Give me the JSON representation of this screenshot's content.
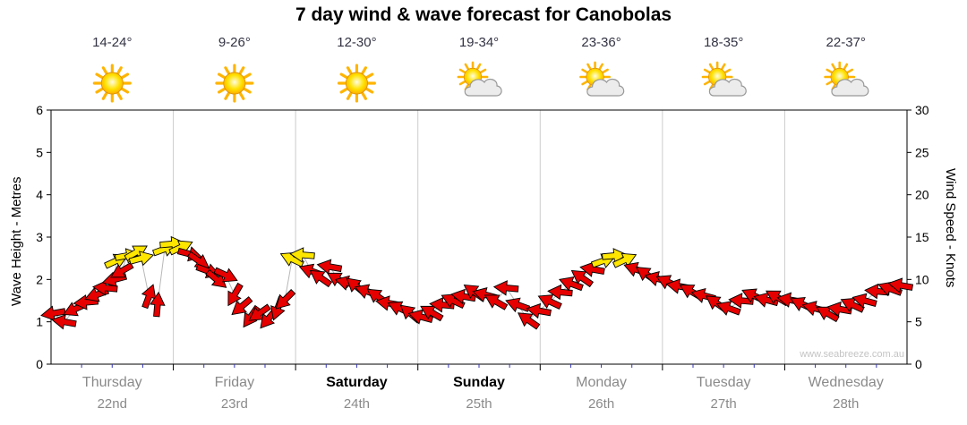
{
  "watermark": "www.seabreeze.com.au",
  "colors": {
    "arrow_red": "#e60000",
    "arrow_yellow": "#ffe600",
    "arrow_outline": "#000000",
    "gridline": "#cccccc",
    "axis": "#000000",
    "minor_tick": "#3333bb",
    "day_grey": "#8a8a8a",
    "day_black": "#000000",
    "temp_text": "#333344",
    "watermark_text": "#c4c4c4",
    "sun_core": "#ffe200",
    "sun_ray": "#ffb400",
    "cloud_fill": "#ececec",
    "cloud_outline": "#999999",
    "trace_line": "#b0b0b0"
  },
  "chart_data": {
    "type": "scatter",
    "title": "7 day wind & wave forecast for Canobolas",
    "left_axis": {
      "label": "Wave Height - Metres",
      "min": 0,
      "max": 6,
      "ticks": [
        0,
        1,
        2,
        3,
        4,
        5,
        6
      ]
    },
    "right_axis": {
      "label": "Wind Speed - Knots",
      "min": 0,
      "max": 30,
      "ticks": [
        0,
        5,
        10,
        15,
        20,
        25,
        30
      ]
    },
    "x_axis": {
      "span_hours": 168,
      "gridlines": "day-boundaries"
    },
    "days": [
      {
        "name": "Thursday",
        "date": "22nd",
        "temp": "14-24°",
        "icon": "sunny",
        "bold": false
      },
      {
        "name": "Friday",
        "date": "23rd",
        "temp": "9-26°",
        "icon": "sunny",
        "bold": false
      },
      {
        "name": "Saturday",
        "date": "24th",
        "temp": "12-30°",
        "icon": "sunny",
        "bold": true
      },
      {
        "name": "Sunday",
        "date": "25th",
        "temp": "19-34°",
        "icon": "partly-cloudy",
        "bold": true
      },
      {
        "name": "Monday",
        "date": "26th",
        "temp": "23-36°",
        "icon": "partly-cloudy",
        "bold": false
      },
      {
        "name": "Tuesday",
        "date": "27th",
        "temp": "18-35°",
        "icon": "partly-cloudy",
        "bold": false
      },
      {
        "name": "Wednesday",
        "date": "28th",
        "temp": "22-37°",
        "icon": "partly-cloudy",
        "bold": false
      }
    ],
    "wind_points_format": [
      "hour_offset",
      "wind_speed_knots",
      "arrow_dir_deg_cw_from_east",
      "color_code_r_red_y_yellow"
    ],
    "wind_points": [
      [
        0.5,
        6.0,
        170,
        "r"
      ],
      [
        2.6,
        5.0,
        190,
        "r"
      ],
      [
        4.7,
        6.5,
        155,
        "r"
      ],
      [
        6.9,
        7.3,
        175,
        "r"
      ],
      [
        9.0,
        8.2,
        160,
        "r"
      ],
      [
        10.7,
        9.0,
        185,
        "r"
      ],
      [
        12.5,
        10.0,
        165,
        "r"
      ],
      [
        12.8,
        12.2,
        -25,
        "y"
      ],
      [
        13.9,
        11.0,
        150,
        "r"
      ],
      [
        14.9,
        12.8,
        -10,
        "y"
      ],
      [
        16.7,
        13.2,
        -30,
        "y"
      ],
      [
        17.7,
        12.5,
        -15,
        "y"
      ],
      [
        19.2,
        8.0,
        -70,
        "r"
      ],
      [
        20.9,
        7.0,
        -85,
        "r"
      ],
      [
        22.3,
        13.6,
        -20,
        "y"
      ],
      [
        23.7,
        14.2,
        -5,
        "y"
      ],
      [
        25.5,
        13.8,
        -25,
        "y"
      ],
      [
        27.2,
        13.0,
        15,
        "r"
      ],
      [
        29.0,
        12.2,
        35,
        "r"
      ],
      [
        30.8,
        11.0,
        20,
        "r"
      ],
      [
        32.5,
        10.0,
        40,
        "r"
      ],
      [
        34.3,
        10.5,
        25,
        "r"
      ],
      [
        36.0,
        8.2,
        120,
        "r"
      ],
      [
        37.4,
        6.8,
        140,
        "r"
      ],
      [
        39.2,
        5.6,
        125,
        "r"
      ],
      [
        40.9,
        6.0,
        145,
        "r"
      ],
      [
        42.7,
        5.4,
        130,
        "r"
      ],
      [
        44.5,
        6.6,
        110,
        "r"
      ],
      [
        45.9,
        7.6,
        135,
        "r"
      ],
      [
        47.3,
        12.4,
        -155,
        "y"
      ],
      [
        49.4,
        12.9,
        -175,
        "y"
      ],
      [
        51.1,
        11.0,
        200,
        "r"
      ],
      [
        52.9,
        10.2,
        215,
        "r"
      ],
      [
        54.7,
        11.5,
        190,
        "r"
      ],
      [
        56.4,
        10.0,
        210,
        "r"
      ],
      [
        58.2,
        9.6,
        195,
        "r"
      ],
      [
        59.9,
        9.2,
        220,
        "r"
      ],
      [
        62.0,
        8.6,
        200,
        "r"
      ],
      [
        64.1,
        8.0,
        215,
        "r"
      ],
      [
        66.2,
        7.2,
        190,
        "r"
      ],
      [
        68.4,
        6.6,
        205,
        "r"
      ],
      [
        70.5,
        6.0,
        220,
        "r"
      ],
      [
        72.6,
        5.6,
        195,
        "r"
      ],
      [
        74.7,
        6.1,
        210,
        "r"
      ],
      [
        76.8,
        7.0,
        185,
        "r"
      ],
      [
        78.9,
        7.5,
        205,
        "r"
      ],
      [
        81.0,
        8.0,
        190,
        "r"
      ],
      [
        83.1,
        8.5,
        215,
        "r"
      ],
      [
        85.2,
        8.2,
        195,
        "r"
      ],
      [
        87.3,
        7.4,
        210,
        "r"
      ],
      [
        89.4,
        9.0,
        185,
        "r"
      ],
      [
        91.6,
        7.0,
        200,
        "r"
      ],
      [
        93.7,
        5.2,
        215,
        "r"
      ],
      [
        95.8,
        6.3,
        190,
        "r"
      ],
      [
        97.9,
        7.4,
        205,
        "r"
      ],
      [
        100.0,
        8.5,
        185,
        "r"
      ],
      [
        102.1,
        9.5,
        200,
        "r"
      ],
      [
        104.2,
        10.2,
        215,
        "r"
      ],
      [
        106.3,
        11.2,
        190,
        "r"
      ],
      [
        108.4,
        12.2,
        -20,
        "y"
      ],
      [
        110.5,
        12.8,
        -5,
        "y"
      ],
      [
        112.6,
        12.3,
        -25,
        "y"
      ],
      [
        114.8,
        11.2,
        200,
        "r"
      ],
      [
        116.9,
        10.6,
        215,
        "r"
      ],
      [
        119.0,
        10.1,
        195,
        "r"
      ],
      [
        121.1,
        9.7,
        205,
        "r"
      ],
      [
        123.2,
        9.2,
        190,
        "r"
      ],
      [
        125.6,
        8.6,
        210,
        "r"
      ],
      [
        128.1,
        8.1,
        195,
        "r"
      ],
      [
        130.6,
        7.2,
        215,
        "r"
      ],
      [
        133.0,
        6.6,
        200,
        "r"
      ],
      [
        135.5,
        7.5,
        185,
        "r"
      ],
      [
        137.9,
        8.1,
        205,
        "r"
      ],
      [
        140.4,
        7.6,
        195,
        "r"
      ],
      [
        142.5,
        7.9,
        210,
        "r"
      ],
      [
        145.0,
        7.6,
        190,
        "r"
      ],
      [
        147.4,
        7.1,
        205,
        "r"
      ],
      [
        149.9,
        6.6,
        195,
        "r"
      ],
      [
        152.4,
        6.0,
        210,
        "r"
      ],
      [
        154.8,
        6.5,
        190,
        "r"
      ],
      [
        157.3,
        7.0,
        205,
        "r"
      ],
      [
        159.7,
        7.5,
        195,
        "r"
      ],
      [
        162.2,
        8.6,
        185,
        "r"
      ],
      [
        164.7,
        8.9,
        200,
        "r"
      ],
      [
        166.8,
        9.3,
        190,
        "r"
      ]
    ]
  }
}
